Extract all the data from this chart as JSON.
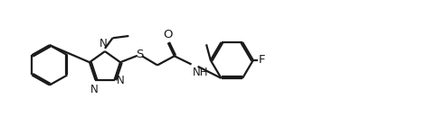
{
  "bg_color": "#ffffff",
  "line_color": "#1a1a1a",
  "line_width": 1.6,
  "font_size": 8.5,
  "figsize": [
    4.72,
    1.4
  ],
  "dpi": 100,
  "xlim": [
    0,
    100
  ],
  "ylim": [
    0,
    30
  ]
}
